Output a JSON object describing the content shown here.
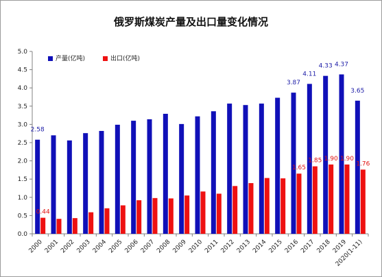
{
  "chart_data": {
    "type": "bar",
    "title": "俄罗斯煤炭产量及出口量变化情况",
    "categories": [
      "2000",
      "2001",
      "2002",
      "2003",
      "2004",
      "2005",
      "2006",
      "2007",
      "2008",
      "2009",
      "2010",
      "2011",
      "2012",
      "2013",
      "2014",
      "2015",
      "2016",
      "2017",
      "2018",
      "2019",
      "2020(1-11)"
    ],
    "series": [
      {
        "name": "产量(亿吨)",
        "color": "#1010b8",
        "values": [
          2.58,
          2.7,
          2.56,
          2.76,
          2.82,
          2.99,
          3.1,
          3.14,
          3.29,
          3.01,
          3.22,
          3.36,
          3.57,
          3.53,
          3.57,
          3.73,
          3.87,
          4.11,
          4.33,
          4.37,
          3.65
        ],
        "labels": {
          "0": "2.58",
          "16": "3.87",
          "17": "4.11",
          "18": "4.33",
          "19": "4.37",
          "20": "3.65"
        }
      },
      {
        "name": "出口(亿吨)",
        "color": "#ee1111",
        "values": [
          0.44,
          0.41,
          0.43,
          0.59,
          0.7,
          0.78,
          0.92,
          0.98,
          0.97,
          1.05,
          1.16,
          1.1,
          1.31,
          1.39,
          1.53,
          1.52,
          1.65,
          1.85,
          1.9,
          1.9,
          1.76
        ],
        "labels": {
          "0": "0.44",
          "16": "1.65",
          "17": "1.85",
          "18": "1.90",
          "19": "1.90",
          "20": "1.76"
        }
      }
    ],
    "ylim": [
      0,
      5.0
    ],
    "yticks": [
      "0.0",
      "0.5",
      "1.0",
      "1.5",
      "2.0",
      "2.5",
      "3.0",
      "3.5",
      "4.0",
      "4.5",
      "5.0"
    ],
    "legend": "top-left",
    "grid": false
  }
}
